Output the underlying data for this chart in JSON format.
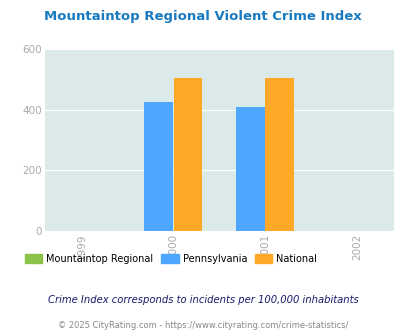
{
  "title": "Mountaintop Regional Violent Crime Index",
  "years": [
    1999,
    2000,
    2001,
    2002
  ],
  "bar_years": [
    2000,
    2001
  ],
  "mountaintop_regional": [
    0,
    0
  ],
  "pennsylvania": [
    425,
    410
  ],
  "national": [
    507,
    506
  ],
  "bar_width": 0.32,
  "ylim": [
    0,
    600
  ],
  "yticks": [
    0,
    200,
    400,
    600
  ],
  "color_mountaintop": "#8bc34a",
  "color_pennsylvania": "#4da6ff",
  "color_national": "#ffa726",
  "bg_color": "#dce9e9",
  "legend_labels": [
    "Mountaintop Regional",
    "Pennsylvania",
    "National"
  ],
  "footnote1": "Crime Index corresponds to incidents per 100,000 inhabitants",
  "footnote2": "© 2025 CityRating.com - https://www.cityrating.com/crime-statistics/",
  "title_color": "#1a7abf",
  "footnote1_color": "#1a1a6e",
  "footnote2_color": "#888888",
  "tick_color": "#aaaaaa"
}
